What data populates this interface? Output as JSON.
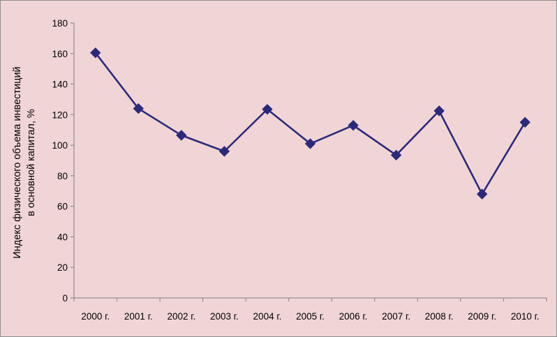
{
  "chart_data": {
    "type": "line",
    "title": "",
    "xlabel": "",
    "ylabel_lines": [
      "Индекс физического объема инвестиций",
      "в основной капитал, %"
    ],
    "categories": [
      "2000 г.",
      "2001 г.",
      "2002 г.",
      "2003 г.",
      "2004 г.",
      "2005 г.",
      "2006 г.",
      "2007 г.",
      "2008 г.",
      "2009 г.",
      "2010 г."
    ],
    "series": [
      {
        "values": [
          160.5,
          124,
          106.5,
          96,
          123.5,
          101,
          113,
          93.5,
          122.5,
          68,
          115
        ],
        "color": "#2b2a7a",
        "marker": "diamond"
      }
    ],
    "ylim": [
      0,
      180
    ],
    "yticks": [
      0,
      20,
      40,
      60,
      80,
      100,
      120,
      140,
      160,
      180
    ],
    "grid": false,
    "legend": "none"
  },
  "colors": {
    "background": "#f1d5d6",
    "border": "#8c8c8c",
    "axis": "#808080",
    "series": "#2b2a7a"
  }
}
